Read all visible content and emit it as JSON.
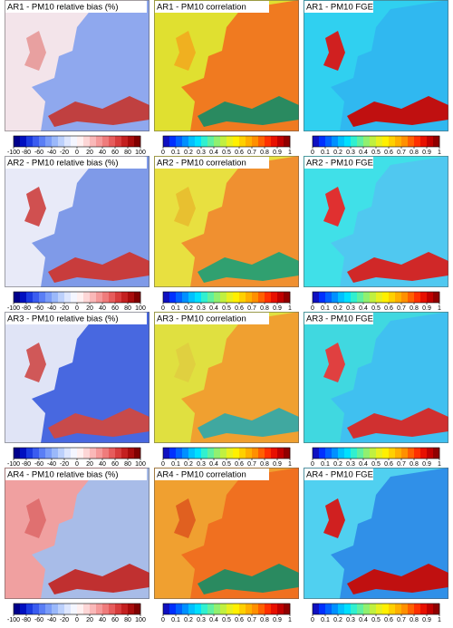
{
  "rows": [
    {
      "panels": [
        {
          "label": "AR1 - PM10  relative bias  (%)",
          "scale": "bias"
        },
        {
          "label": "AR1 - PM10   correlation",
          "scale": "unit"
        },
        {
          "label": "AR1 - PM10 FGE",
          "scale": "unit"
        }
      ]
    },
    {
      "panels": [
        {
          "label": "AR2 - PM10  relative bias  (%)",
          "scale": "bias"
        },
        {
          "label": "AR2 - PM10   correlation",
          "scale": "unit"
        },
        {
          "label": "AR2 - PM10 FGE",
          "scale": "unit"
        }
      ]
    },
    {
      "panels": [
        {
          "label": "AR3 - PM10  relative bias  (%)",
          "scale": "bias"
        },
        {
          "label": "AR3 - PM10   correlation",
          "scale": "unit"
        },
        {
          "label": "AR3 - PM10 FGE",
          "scale": "unit"
        }
      ]
    },
    {
      "panels": [
        {
          "label": "AR4 - PM10  relative bias  (%)",
          "scale": "bias"
        },
        {
          "label": "AR4 - PM10   correlation",
          "scale": "unit"
        },
        {
          "label": "AR4 - PM10 FGE",
          "scale": "unit"
        }
      ]
    }
  ],
  "scales": {
    "bias": {
      "ticks": [
        -100,
        -80,
        -60,
        -40,
        -20,
        0,
        20,
        40,
        60,
        80,
        100
      ],
      "colors": [
        "#00008b",
        "#0010c0",
        "#1a3ae0",
        "#3a5cf0",
        "#5a7ef5",
        "#7a9cf8",
        "#9ab8fa",
        "#bcd0fc",
        "#dde6fe",
        "#f4f6ff",
        "#fff0f0",
        "#fdd6d6",
        "#fab8b8",
        "#f59a9a",
        "#ef7c7c",
        "#e65c5c",
        "#d83c3c",
        "#c42020",
        "#a80c0c",
        "#800000"
      ]
    },
    "unit": {
      "ticks": [
        0,
        0.1,
        0.2,
        0.3,
        0.4,
        0.5,
        0.6,
        0.7,
        0.8,
        0.9,
        1
      ],
      "colors": [
        "#1010c0",
        "#0030ff",
        "#0060ff",
        "#0090ff",
        "#00c0ff",
        "#00e0ff",
        "#30f0d0",
        "#60f0a0",
        "#90f070",
        "#c0f040",
        "#e8f020",
        "#fff000",
        "#ffd000",
        "#ffb000",
        "#ff9000",
        "#ff6000",
        "#ff3000",
        "#e81000",
        "#c00000",
        "#900000"
      ]
    }
  }
}
